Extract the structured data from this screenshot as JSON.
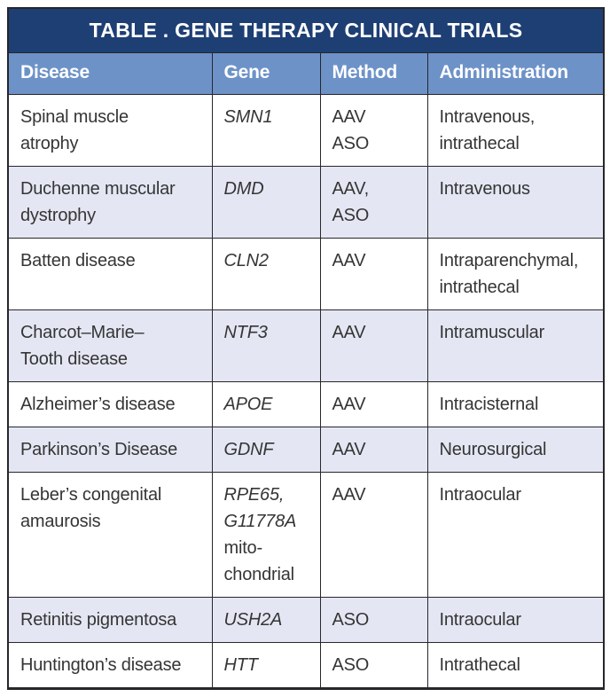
{
  "table": {
    "title": "TABLE . GENE THERAPY CLINICAL TRIALS",
    "columns": [
      {
        "label": "Disease"
      },
      {
        "label": "Gene"
      },
      {
        "label": "Method"
      },
      {
        "label": "Administration"
      }
    ],
    "rows": [
      {
        "disease": "Spinal muscle\natrophy",
        "gene": "SMN1",
        "gene_note": "",
        "method": "AAV\nASO",
        "administration": "Intravenous,\nintrathecal"
      },
      {
        "disease": "Duchenne muscular\ndystrophy",
        "gene": "DMD",
        "gene_note": "",
        "method": "AAV,\nASO",
        "administration": "Intravenous"
      },
      {
        "disease": "Batten disease",
        "gene": "CLN2",
        "gene_note": "",
        "method": "AAV",
        "administration": "Intraparenchymal,\nintrathecal"
      },
      {
        "disease": "Charcot–Marie–\nTooth disease",
        "gene": "NTF3",
        "gene_note": "",
        "method": "AAV",
        "administration": "Intramuscular"
      },
      {
        "disease": "Alzheimer’s disease",
        "gene": "APOE",
        "gene_note": "",
        "method": "AAV",
        "administration": "Intracisternal"
      },
      {
        "disease": "Parkinson’s Disease",
        "gene": "GDNF",
        "gene_note": "",
        "method": "AAV",
        "administration": "Neurosurgical"
      },
      {
        "disease": "Leber’s congenital\namaurosis",
        "gene": "RPE65,\nG11778A",
        "gene_note": "mito-\nchondrial",
        "method": "AAV",
        "administration": "Intraocular"
      },
      {
        "disease": "Retinitis pigmentosa",
        "gene": "USH2A",
        "gene_note": "",
        "method": "ASO",
        "administration": "Intraocular"
      },
      {
        "disease": "Huntington’s disease",
        "gene": "HTT",
        "gene_note": "",
        "method": "ASO",
        "administration": "Intrathecal"
      }
    ]
  },
  "colors": {
    "title_bg": "#1e3f74",
    "header_bg": "#6d92c8",
    "stripe_bg": "#e4e7f3",
    "header_text": "#ffffff",
    "body_text": "#353535",
    "grid_line": "#26262b"
  }
}
